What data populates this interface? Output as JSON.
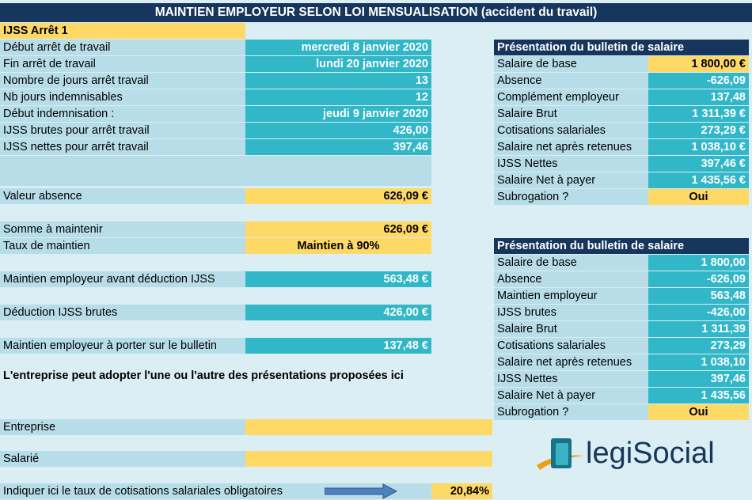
{
  "title": "MAINTIEN EMPLOYEUR SELON LOI MENSUALISATION (accident du travail)",
  "left": {
    "section": "IJSS Arrêt 1",
    "rows": [
      {
        "label": "Début arrêt de travail",
        "value": "mercredi 8 janvier 2020"
      },
      {
        "label": "Fin arrêt de travail",
        "value": "lundi 20 janvier 2020"
      },
      {
        "label": "Nombre de jours arrêt travail",
        "value": "13"
      },
      {
        "label": "Nb jours indemnisables",
        "value": "12"
      },
      {
        "label": "Début indemnisation :",
        "value": "jeudi 9 janvier 2020"
      },
      {
        "label": "IJSS brutes pour arrêt travail",
        "value": "426,00"
      },
      {
        "label": "IJSS nettes pour arrêt travail",
        "value": "397,46"
      }
    ],
    "valeur_absence": {
      "label": "Valeur absence",
      "value": "626,09 €"
    },
    "somme_maintenir": {
      "label": "Somme à maintenir",
      "value": "626,09 €"
    },
    "taux_maintien": {
      "label": "Taux de maintien",
      "value": "Maintien à 90%"
    },
    "maintien_avant": {
      "label": "Maintien employeur avant déduction IJSS",
      "value": "563,48 €"
    },
    "deduction": {
      "label": "Déduction IJSS brutes",
      "value": "426,00 €"
    },
    "maintien_bulletin": {
      "label": "Maintien employeur à porter sur le bulletin",
      "value": "137,48 €"
    },
    "note": "L'entreprise peut adopter l'une ou l'autre des présentations proposées ici",
    "entreprise": "Entreprise",
    "salarie": "Salarié",
    "taux_cotis": {
      "label": "Indiquer ici le taux de cotisations salariales obligatoires",
      "value": "20,84%"
    }
  },
  "bulletin1": {
    "header": "Présentation du bulletin de salaire",
    "rows": [
      {
        "label": "Salaire de base",
        "value": "1 800,00 €"
      },
      {
        "label": "Absence",
        "value": "-626,09"
      },
      {
        "label": "Complément employeur",
        "value": "137,48"
      },
      {
        "label": "Salaire Brut",
        "value": "1 311,39 €"
      },
      {
        "label": "Cotisations salariales",
        "value": "273,29 €"
      },
      {
        "label": "Salaire net après retenues",
        "value": "1 038,10 €"
      },
      {
        "label": "IJSS Nettes",
        "value": "397,46 €"
      },
      {
        "label": "Salaire Net à payer",
        "value": "1 435,56 €"
      },
      {
        "label": "Subrogation ?",
        "value": "Oui"
      }
    ]
  },
  "bulletin2": {
    "header": "Présentation du bulletin de salaire",
    "rows": [
      {
        "label": "Salaire de base",
        "value": "1 800,00"
      },
      {
        "label": "Absence",
        "value": "-626,09"
      },
      {
        "label": "Maintien employeur",
        "value": "563,48"
      },
      {
        "label": "IJSS brutes",
        "value": "-426,00"
      },
      {
        "label": "Salaire Brut",
        "value": "1 311,39"
      },
      {
        "label": "Cotisations salariales",
        "value": "273,29"
      },
      {
        "label": "Salaire net après retenues",
        "value": "1 038,10"
      },
      {
        "label": "IJSS Nettes",
        "value": "397,46"
      },
      {
        "label": "Salaire Net à payer",
        "value": "1 435,56"
      },
      {
        "label": "Subrogation ?",
        "value": "Oui"
      }
    ]
  },
  "logo": {
    "part1": "legi",
    "part2": "Social"
  }
}
